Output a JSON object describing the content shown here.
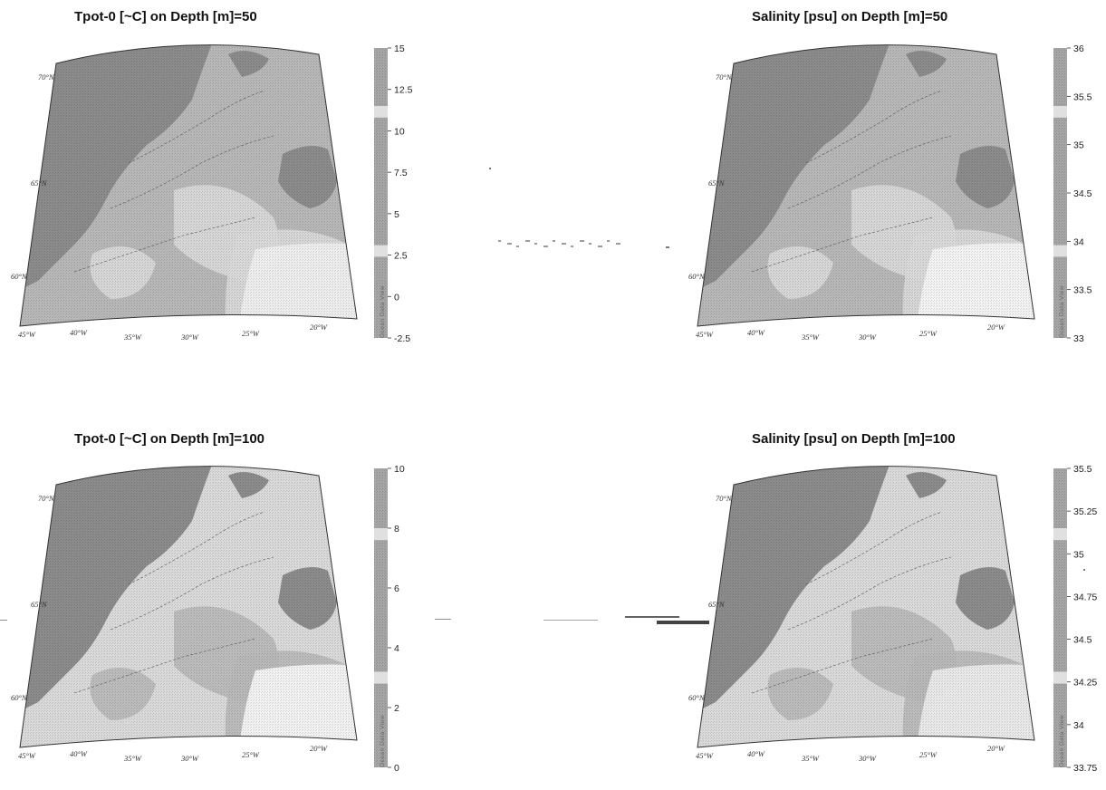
{
  "panels": [
    {
      "id": "tpot-50",
      "title": "Tpot-0 [~C] on Depth [m]=50",
      "colorbar_ticks": [
        "15",
        "12.5",
        "10",
        "7.5",
        "5",
        "2.5",
        "0",
        "-2.5"
      ],
      "lat_labels": [
        "70°N",
        "65°N",
        "60°N"
      ],
      "lon_labels": [
        "45°W",
        "40°W",
        "35°W",
        "30°W",
        "25°W",
        "20°W"
      ],
      "watermark": "Ocean Data View"
    },
    {
      "id": "salinity-50",
      "title": "Salinity [psu] on Depth [m]=50",
      "colorbar_ticks": [
        "36",
        "35.5",
        "35",
        "34.5",
        "34",
        "33.5",
        "33"
      ],
      "lat_labels": [
        "70°N",
        "65°N",
        "60°N"
      ],
      "lon_labels": [
        "45°W",
        "40°W",
        "35°W",
        "30°W",
        "25°W",
        "20°W"
      ],
      "watermark": "Ocean Data View"
    },
    {
      "id": "tpot-100",
      "title": "Tpot-0 [~C] on Depth [m]=100",
      "colorbar_ticks": [
        "10",
        "8",
        "6",
        "4",
        "2",
        "0"
      ],
      "lat_labels": [
        "70°N",
        "65°N",
        "60°N"
      ],
      "lon_labels": [
        "45°W",
        "40°W",
        "35°W",
        "30°W",
        "25°W",
        "20°W"
      ],
      "watermark": "Ocean Data View"
    },
    {
      "id": "salinity-100",
      "title": "Salinity [psu] on Depth [m]=100",
      "colorbar_ticks": [
        "35.5",
        "35.25",
        "35",
        "34.75",
        "34.5",
        "34.25",
        "34",
        "33.75"
      ],
      "lat_labels": [
        "70°N",
        "65°N",
        "60°N"
      ],
      "lon_labels": [
        "45°W",
        "40°W",
        "35°W",
        "30°W",
        "25°W",
        "20°W"
      ],
      "watermark": "Ocean Data View"
    }
  ],
  "colors": {
    "land": "#8c8c8c",
    "ocean_mid": "#b8b8b8",
    "ocean_light": "#dadada",
    "ocean_white": "#f4f4f4",
    "colorbar": "#a6a6a6",
    "outline": "#333333"
  }
}
